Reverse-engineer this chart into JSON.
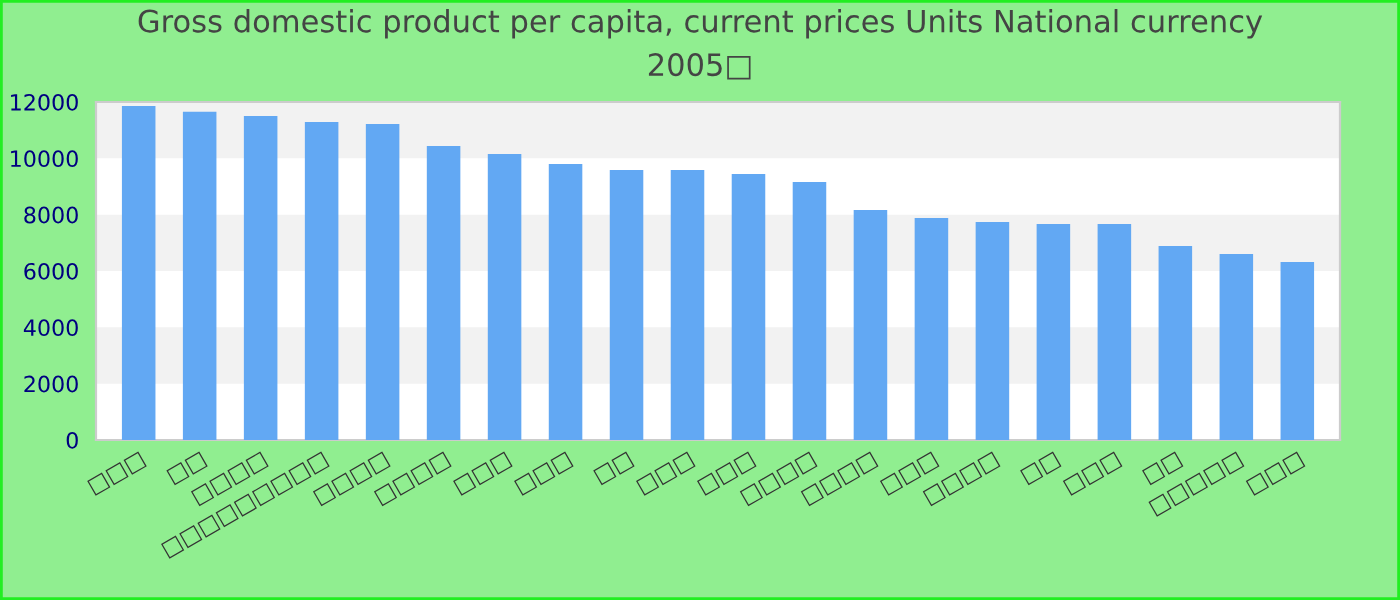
{
  "chart_data": {
    "type": "bar",
    "title": "Gross domestic product per capita, current prices Units National currency\n2005□",
    "categories": [
      "□□□",
      "□□",
      "□□□□",
      "□□□□□□□□□",
      "□□□□",
      "□□□□",
      "□□□",
      "□□□",
      "□□",
      "□□□",
      "□□□",
      "□□□□",
      "□□□□",
      "□□□",
      "□□□□",
      "□□",
      "□□□",
      "□□",
      "□□□□□",
      "□□□"
    ],
    "values": [
      11860,
      11650,
      11500,
      11290,
      11220,
      10440,
      10150,
      9800,
      9590,
      9590,
      9440,
      9160,
      8170,
      7880,
      7740,
      7670,
      7670,
      6890,
      6600,
      6320
    ],
    "color": "#62a8f3",
    "ylim": [
      0,
      12000
    ],
    "yticks": [
      0,
      2000,
      4000,
      6000,
      8000,
      10000,
      12000
    ],
    "bands": [
      {
        "axis": "y",
        "from": 2000,
        "to": 4000,
        "color": "#f2f2f2"
      },
      {
        "axis": "y",
        "from": 6000,
        "to": 8000,
        "color": "#f2f2f2"
      },
      {
        "axis": "y",
        "from": 10000,
        "to": 12000,
        "color": "#f2f2f2"
      }
    ]
  }
}
